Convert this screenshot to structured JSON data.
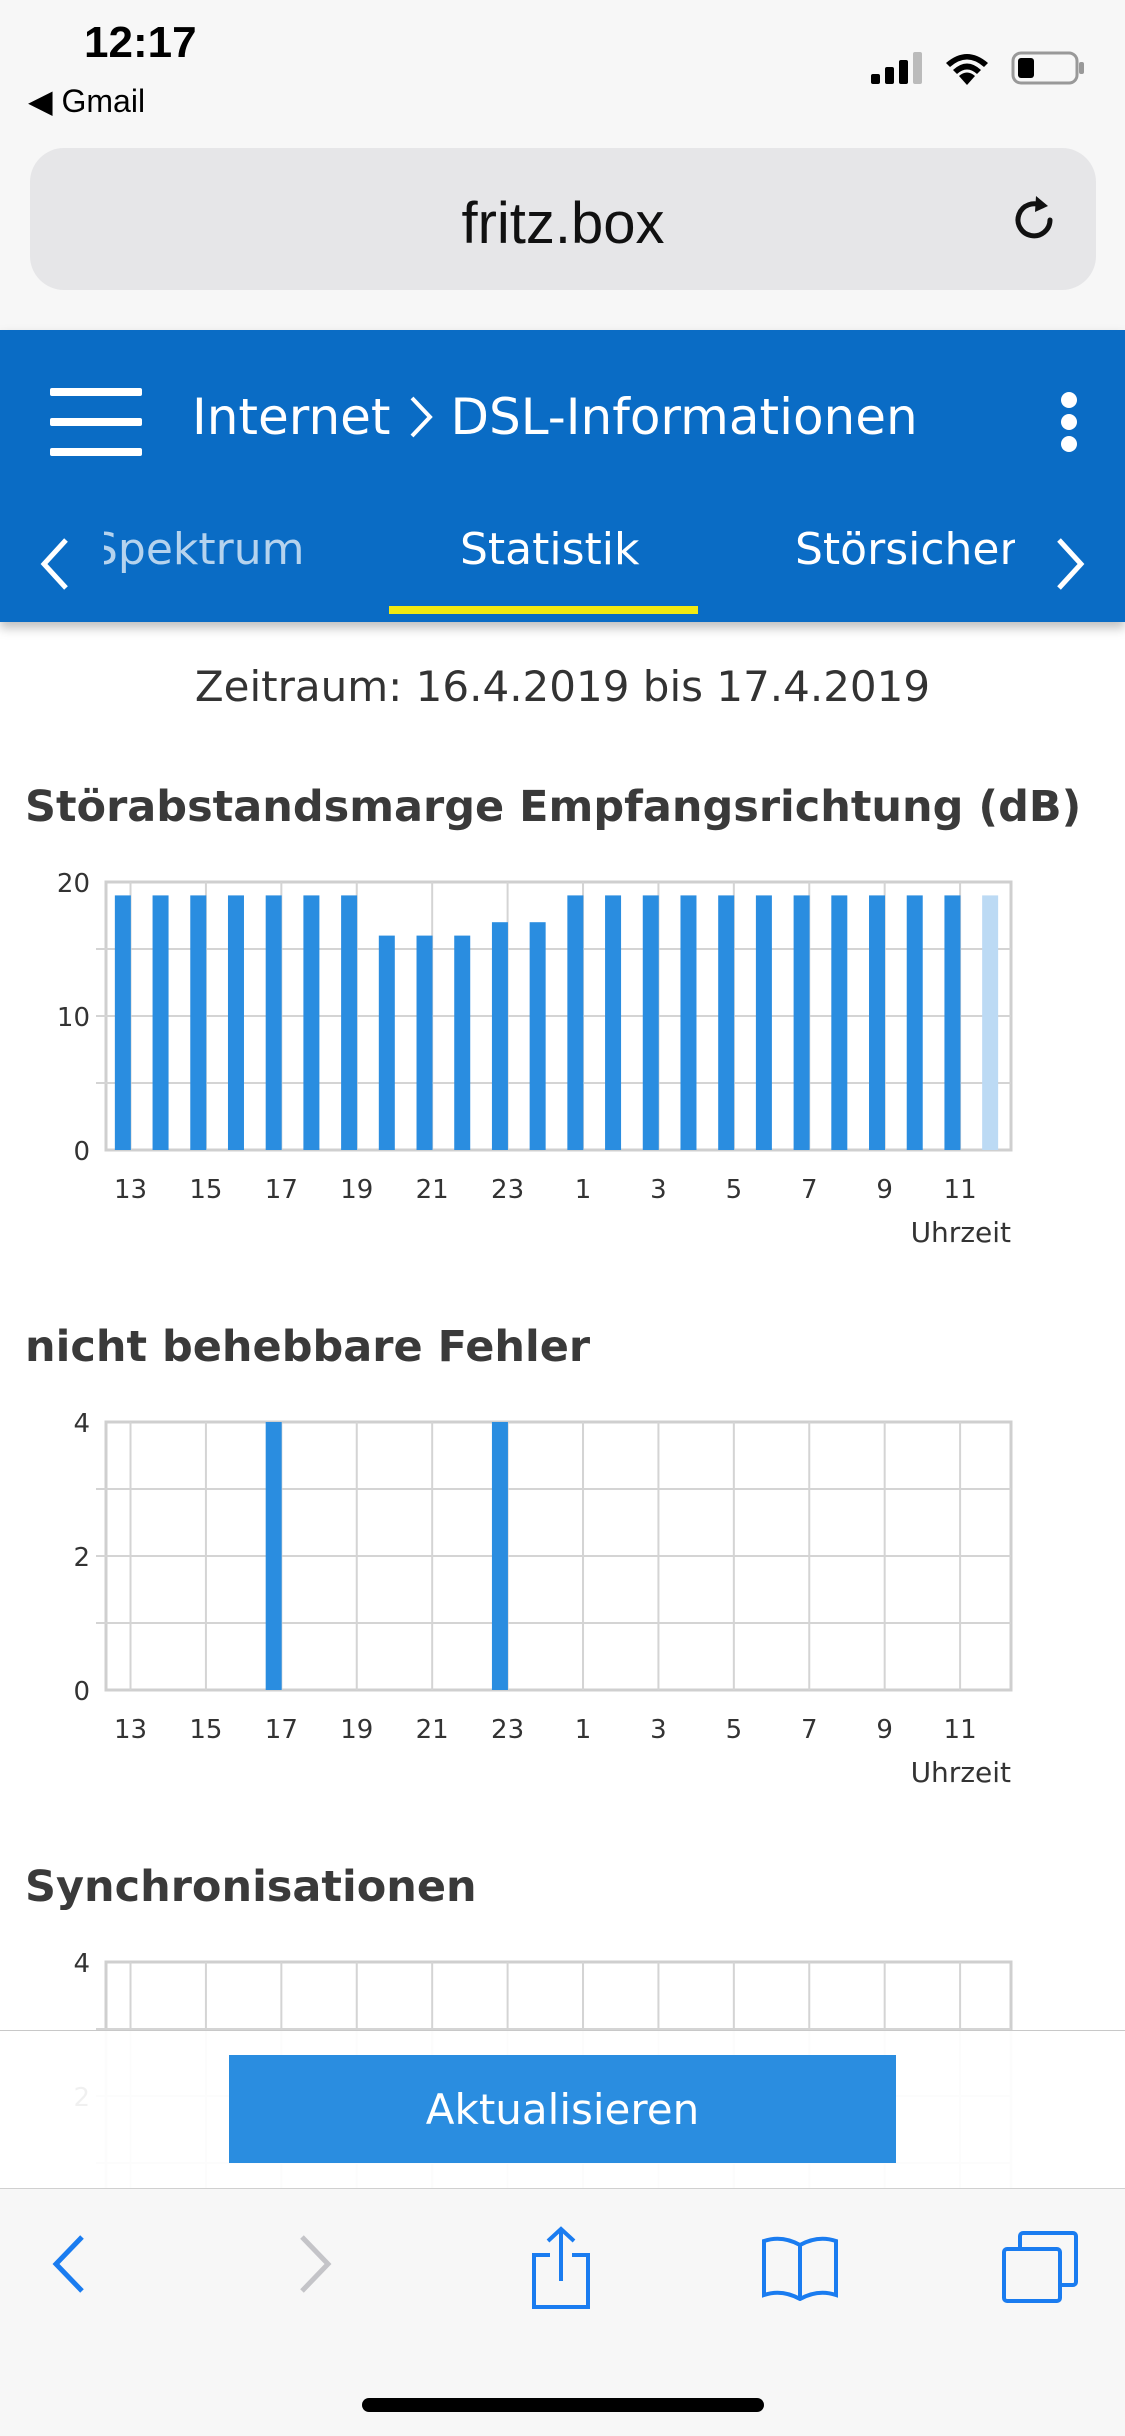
{
  "status_bar": {
    "time": "12:17",
    "back_app": "◀ Gmail"
  },
  "browser": {
    "url": "fritz.box"
  },
  "header": {
    "breadcrumb_section": "Internet",
    "breadcrumb_page": "DSL-Informationen",
    "tabs": [
      {
        "label": "Spektrum",
        "visible_label": "Spektrum",
        "active": false
      },
      {
        "label": "Statistik",
        "active": true
      },
      {
        "label": "Störsicherh",
        "active": false
      }
    ],
    "accent_color": "#0a6cc5",
    "underline_color": "#f2ea12"
  },
  "period": "Zeitraum: 16.4.2019 bis 17.4.2019",
  "charts": [
    {
      "title": "Störabstandsmarge Empfangsrichtung (dB)",
      "x_unit": "Uhrzeit",
      "y_ticks": [
        "20",
        "10",
        "0"
      ],
      "x_ticks": [
        "13",
        "15",
        "17",
        "19",
        "21",
        "23",
        "1",
        "3",
        "5",
        "7",
        "9",
        "11"
      ]
    },
    {
      "title": "nicht behebbare Fehler",
      "x_unit": "Uhrzeit",
      "y_ticks": [
        "4",
        "2",
        "0"
      ],
      "x_ticks": [
        "13",
        "15",
        "17",
        "19",
        "21",
        "23",
        "1",
        "3",
        "5",
        "7",
        "9",
        "11"
      ]
    },
    {
      "title": "Synchronisationen",
      "y_ticks": [
        "4",
        "2"
      ]
    }
  ],
  "chart_data": [
    {
      "type": "bar",
      "title": "Störabstandsmarge Empfangsrichtung (dB)",
      "xlabel": "Uhrzeit",
      "ylabel": "",
      "ylim": [
        0,
        20
      ],
      "x_tick_labels": [
        "13",
        "15",
        "17",
        "19",
        "21",
        "23",
        "1",
        "3",
        "5",
        "7",
        "9",
        "11"
      ],
      "grid": true,
      "series": [
        {
          "values": [
            19,
            19,
            19,
            19,
            19,
            19,
            19,
            16,
            16,
            16,
            17,
            17,
            19,
            19,
            19,
            19,
            19,
            19,
            19,
            19,
            19,
            19,
            19,
            19
          ],
          "color": "#2a8de0",
          "last_value_pending": true
        }
      ]
    },
    {
      "type": "bar",
      "title": "nicht behebbare Fehler",
      "xlabel": "Uhrzeit",
      "ylabel": "",
      "ylim": [
        0,
        4
      ],
      "x_tick_labels": [
        "13",
        "15",
        "17",
        "19",
        "21",
        "23",
        "1",
        "3",
        "5",
        "7",
        "9",
        "11"
      ],
      "grid": true,
      "series": [
        {
          "values": [
            0,
            0,
            0,
            0,
            4,
            0,
            0,
            0,
            0,
            0,
            4,
            0,
            0,
            0,
            0,
            0,
            0,
            0,
            0,
            0,
            0,
            0,
            0,
            0
          ],
          "color": "#2a8de0"
        }
      ]
    },
    {
      "type": "bar",
      "title": "Synchronisationen",
      "ylim": [
        0,
        4
      ],
      "grid": true,
      "series": [
        {
          "values": []
        }
      ]
    }
  ],
  "actions": {
    "update_label": "Aktualisieren"
  }
}
